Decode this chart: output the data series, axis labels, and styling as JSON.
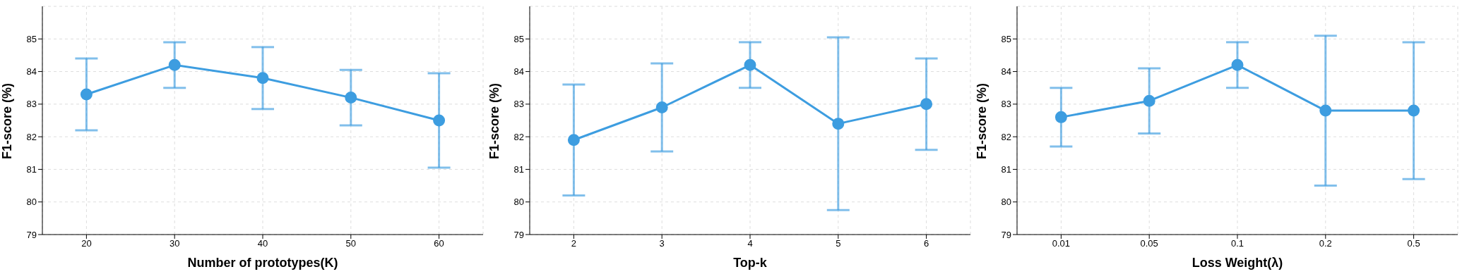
{
  "chart_data": [
    {
      "type": "line",
      "xlabel": "Number of prototypes(K)",
      "ylabel": "F1-score (%)",
      "categories": [
        "20",
        "30",
        "40",
        "50",
        "60"
      ],
      "values": [
        83.3,
        84.2,
        83.8,
        83.2,
        82.5
      ],
      "errors": [
        1.1,
        0.7,
        0.95,
        0.85,
        1.45
      ],
      "color": "#3d9de0",
      "ylim": [
        79,
        86
      ],
      "yticks": [
        79,
        80,
        81,
        82,
        83,
        84,
        85
      ],
      "grid": true,
      "marker": "circle",
      "line_style": "solid"
    },
    {
      "type": "line",
      "xlabel": "Top-k",
      "ylabel": "F1-score (%)",
      "categories": [
        "2",
        "3",
        "4",
        "5",
        "6"
      ],
      "values": [
        81.9,
        82.9,
        84.2,
        82.4,
        83.0
      ],
      "errors": [
        1.7,
        1.35,
        0.7,
        2.65,
        1.4
      ],
      "color": "#3d9de0",
      "ylim": [
        79,
        86
      ],
      "yticks": [
        79,
        80,
        81,
        82,
        83,
        84,
        85
      ],
      "grid": true,
      "marker": "circle",
      "line_style": "solid"
    },
    {
      "type": "line",
      "xlabel": "Loss Weight(λ)",
      "ylabel": "F1-score (%)",
      "categories": [
        "0.01",
        "0.05",
        "0.1",
        "0.2",
        "0.5"
      ],
      "values": [
        82.6,
        83.1,
        84.2,
        82.8,
        82.8
      ],
      "errors": [
        0.9,
        1.0,
        0.7,
        2.3,
        2.1
      ],
      "color": "#3d9de0",
      "ylim": [
        79,
        86
      ],
      "yticks": [
        79,
        80,
        81,
        82,
        83,
        84,
        85
      ],
      "grid": true,
      "marker": "circle",
      "line_style": "solid"
    }
  ]
}
